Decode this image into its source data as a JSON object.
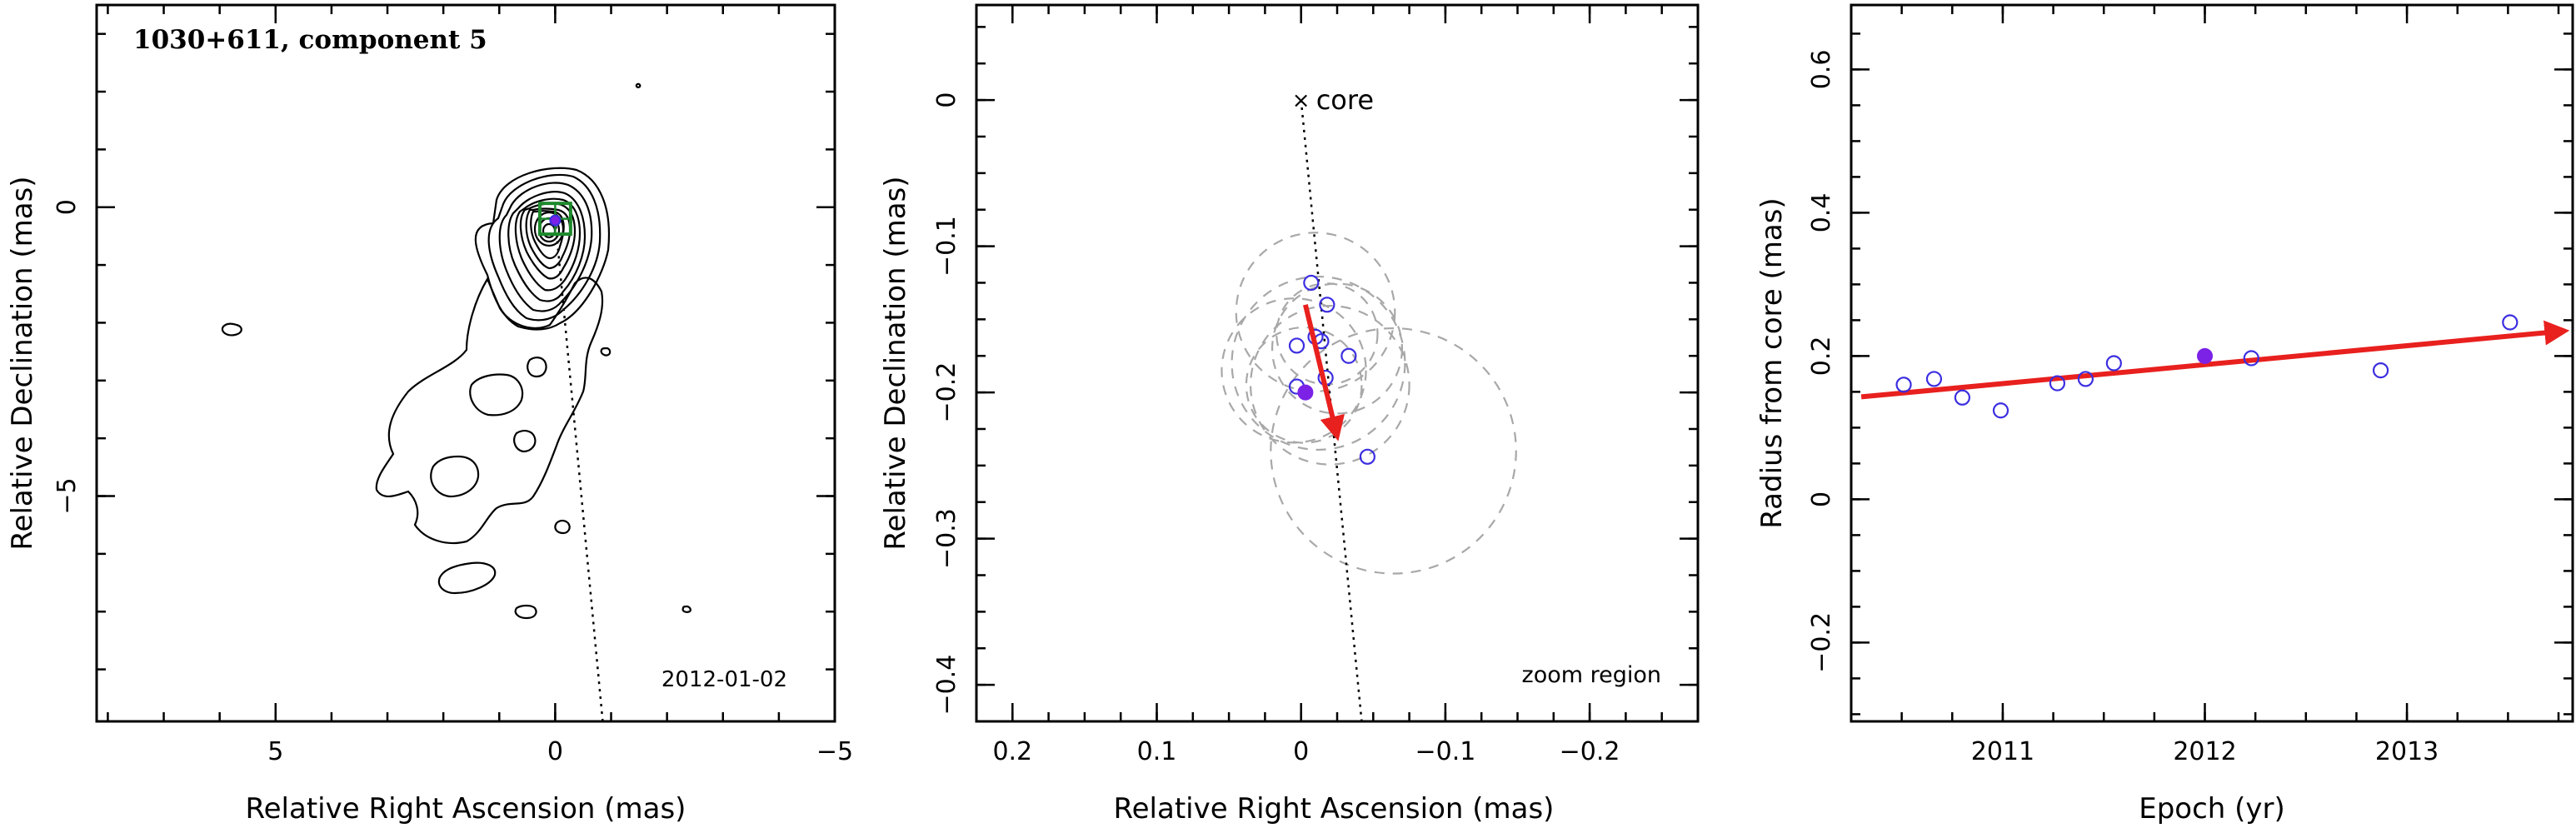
{
  "chart_data": [
    {
      "type": "contour",
      "title": "1030+611, component 5",
      "date_label": "2012-01-02",
      "xlabel": "Relative Right Ascension (mas)",
      "ylabel": "Relative Declination (mas)",
      "xlim": [
        8.2,
        -5.0
      ],
      "ylim": [
        -8.9,
        3.5
      ],
      "xticks": [
        5,
        0,
        -5
      ],
      "yticks": [
        0,
        -5
      ],
      "component_box": {
        "x": 0.0,
        "y": -0.2,
        "size": 0.55
      },
      "core_direction_line": [
        [
          0.0,
          -0.2
        ],
        [
          -0.85,
          -8.9
        ]
      ],
      "contour_peak": {
        "x": 0.0,
        "y": -0.1
      }
    },
    {
      "type": "scatter",
      "xlabel": "Relative Right Ascension (mas)",
      "ylabel": "Relative Declination (mas)",
      "xlim": [
        0.225,
        -0.275
      ],
      "ylim": [
        -0.425,
        0.065
      ],
      "xticks": [
        0.2,
        0.1,
        0,
        -0.1,
        -0.2
      ],
      "yticks": [
        0,
        -0.1,
        -0.2,
        -0.3,
        -0.4
      ],
      "annotation_core": "core",
      "annotation_region": "zoom region",
      "core": {
        "x": 0.0,
        "y": 0.0
      },
      "core_direction_line": [
        [
          0.0,
          0.0
        ],
        [
          -0.042,
          -0.425
        ]
      ],
      "points_open": [
        {
          "x": -0.007,
          "y": -0.125
        },
        {
          "x": -0.018,
          "y": -0.14
        },
        {
          "x": -0.01,
          "y": -0.162
        },
        {
          "x": -0.014,
          "y": -0.165
        },
        {
          "x": 0.003,
          "y": -0.168
        },
        {
          "x": -0.033,
          "y": -0.175
        },
        {
          "x": -0.017,
          "y": -0.19
        },
        {
          "x": 0.003,
          "y": -0.196
        },
        {
          "x": -0.046,
          "y": -0.244
        }
      ],
      "points_filled": [
        {
          "x": -0.003,
          "y": -0.2
        }
      ],
      "error_circles": [
        {
          "x": -0.01,
          "y": -0.145,
          "r": 0.055
        },
        {
          "x": -0.025,
          "y": -0.17,
          "r": 0.045
        },
        {
          "x": -0.012,
          "y": -0.18,
          "r": 0.06
        },
        {
          "x": 0.005,
          "y": -0.185,
          "r": 0.05
        },
        {
          "x": -0.02,
          "y": -0.195,
          "r": 0.055
        },
        {
          "x": -0.002,
          "y": -0.195,
          "r": 0.04
        },
        {
          "x": -0.018,
          "y": -0.16,
          "r": 0.035
        },
        {
          "x": -0.064,
          "y": -0.24,
          "r": 0.085
        }
      ],
      "motion_arrow": {
        "from": [
          -0.003,
          -0.14
        ],
        "to": [
          -0.025,
          -0.23
        ]
      }
    },
    {
      "type": "scatter",
      "xlabel": "Epoch (yr)",
      "ylabel": "Radius from core (mas)",
      "xlim": [
        2010.25,
        2013.82
      ],
      "ylim": [
        -0.31,
        0.69
      ],
      "xticks": [
        2011,
        2012,
        2013
      ],
      "yticks": [
        -0.2,
        0,
        0.2,
        0.4,
        0.6
      ],
      "points_open": [
        {
          "x": 2010.51,
          "y": 0.16
        },
        {
          "x": 2010.66,
          "y": 0.168
        },
        {
          "x": 2010.8,
          "y": 0.142
        },
        {
          "x": 2010.99,
          "y": 0.124
        },
        {
          "x": 2011.27,
          "y": 0.162
        },
        {
          "x": 2011.41,
          "y": 0.168
        },
        {
          "x": 2011.55,
          "y": 0.19
        },
        {
          "x": 2012.23,
          "y": 0.197
        },
        {
          "x": 2012.87,
          "y": 0.18
        },
        {
          "x": 2013.51,
          "y": 0.247
        }
      ],
      "points_filled": [
        {
          "x": 2012.0,
          "y": 0.2
        }
      ],
      "fit_arrow": {
        "from": [
          2010.3,
          0.143
        ],
        "to": [
          2013.78,
          0.235
        ]
      }
    }
  ],
  "colors": {
    "point": "#3b2ee0",
    "filled_point": "#7b22e6",
    "arrow": "#e8201e",
    "box": "#1d8a2c",
    "circle": "#a8a8a8"
  }
}
